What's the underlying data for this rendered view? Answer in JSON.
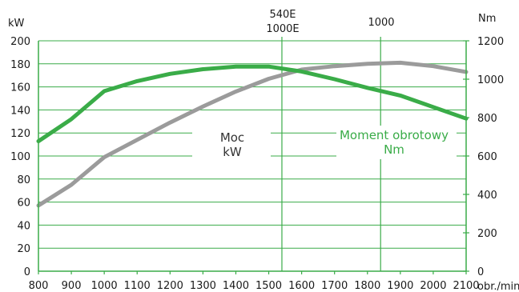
{
  "chart_data": {
    "type": "line",
    "x_range": [
      800,
      2100
    ],
    "x_ticks": [
      "800",
      "900",
      "1000",
      "1100",
      "1200",
      "1300",
      "1400",
      "1500",
      "1600",
      "1700",
      "1800",
      "1900",
      "2000",
      "2100"
    ],
    "x_unit": "obr./min",
    "y_left": {
      "unit": "kW",
      "range": [
        0,
        200
      ],
      "ticks": [
        "0",
        "20",
        "40",
        "60",
        "80",
        "100",
        "120",
        "140",
        "160",
        "180",
        "200"
      ]
    },
    "y_right": {
      "unit": "Nm",
      "range": [
        0,
        1200
      ],
      "ticks": [
        "0",
        "200",
        "400",
        "600",
        "800",
        "1000",
        "1200"
      ]
    },
    "grid": true,
    "vlines": [
      {
        "x": 1540,
        "label_line1": "540E",
        "label_line2": "1000E"
      },
      {
        "x": 1840,
        "label_line1": "1000",
        "label_line2": ""
      }
    ],
    "series": [
      {
        "name_line1": "Moc",
        "name_line2": "kW",
        "axis": "left",
        "color": "#9b9b9b",
        "x": [
          800,
          900,
          1000,
          1100,
          1200,
          1300,
          1400,
          1500,
          1600,
          1700,
          1800,
          1900,
          2000,
          2100
        ],
        "y": [
          57,
          75,
          99,
          114,
          129,
          143,
          156,
          167,
          175,
          178,
          180,
          181,
          178,
          173
        ]
      },
      {
        "name_line1": "Moment obrotowy",
        "name_line2": "Nm",
        "axis": "right",
        "color": "#3aac48",
        "x": [
          800,
          900,
          1000,
          1100,
          1200,
          1300,
          1400,
          1500,
          1600,
          1700,
          1800,
          1900,
          2000,
          2100
        ],
        "y": [
          677,
          792,
          938,
          990,
          1028,
          1052,
          1066,
          1066,
          1040,
          1000,
          955,
          915,
          855,
          795
        ]
      }
    ]
  }
}
